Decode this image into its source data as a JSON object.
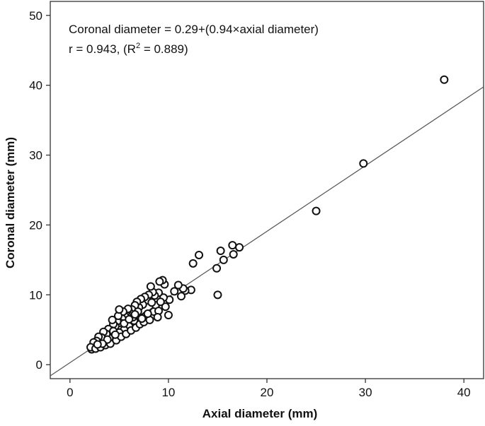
{
  "chart_data": {
    "type": "scatter",
    "title": "",
    "xlabel": "Axial diameter (mm)",
    "ylabel": "Coronal diameter (mm)",
    "xlim": [
      -2,
      42
    ],
    "ylim": [
      -2,
      52
    ],
    "x_ticks": [
      0,
      10,
      20,
      30,
      40
    ],
    "y_ticks": [
      0,
      10,
      20,
      30,
      40,
      50
    ],
    "grid": false,
    "legend": "none",
    "annotation": {
      "equation": "Coronal diameter = 0.29+(0.94×axial diameter)",
      "stats_prefix": "r = 0.943, (R",
      "stats_sup": "2",
      "stats_suffix": " = 0.889)"
    },
    "regression": {
      "intercept": 0.29,
      "slope": 0.94
    },
    "colors": {
      "marker_edge": "#111111",
      "marker_fill": "#ffffff",
      "line": "#555555",
      "frame": "#333333"
    },
    "points": [
      [
        38.0,
        40.8
      ],
      [
        29.8,
        28.8
      ],
      [
        25.0,
        22.0
      ],
      [
        17.2,
        16.8
      ],
      [
        16.5,
        17.1
      ],
      [
        16.6,
        15.8
      ],
      [
        15.6,
        15.0
      ],
      [
        15.3,
        16.3
      ],
      [
        14.9,
        13.8
      ],
      [
        15.0,
        10.0
      ],
      [
        13.1,
        15.7
      ],
      [
        12.5,
        14.5
      ],
      [
        12.3,
        10.7
      ],
      [
        11.7,
        10.6
      ],
      [
        11.3,
        9.8
      ],
      [
        11.5,
        10.9
      ],
      [
        11.0,
        11.4
      ],
      [
        10.6,
        10.5
      ],
      [
        10.1,
        9.3
      ],
      [
        10.0,
        7.1
      ],
      [
        9.7,
        8.3
      ],
      [
        9.5,
        9.6
      ],
      [
        9.6,
        11.5
      ],
      [
        9.4,
        12.1
      ],
      [
        9.1,
        11.9
      ],
      [
        9.0,
        10.3
      ],
      [
        8.7,
        8.5
      ],
      [
        8.6,
        9.9
      ],
      [
        8.4,
        10.4
      ],
      [
        8.2,
        11.2
      ],
      [
        8.5,
        7.6
      ],
      [
        9.0,
        7.7
      ],
      [
        8.9,
        6.8
      ],
      [
        8.0,
        10.0
      ],
      [
        7.8,
        9.2
      ],
      [
        7.6,
        9.7
      ],
      [
        7.7,
        7.0
      ],
      [
        7.4,
        8.6
      ],
      [
        7.2,
        9.4
      ],
      [
        7.0,
        8.2
      ],
      [
        6.9,
        7.1
      ],
      [
        6.8,
        9.0
      ],
      [
        6.6,
        8.5
      ],
      [
        6.5,
        6.3
      ],
      [
        6.3,
        7.9
      ],
      [
        6.1,
        7.4
      ],
      [
        6.0,
        5.5
      ],
      [
        5.8,
        7.7
      ],
      [
        5.6,
        6.9
      ],
      [
        5.5,
        5.0
      ],
      [
        5.3,
        6.6
      ],
      [
        5.1,
        6.0
      ],
      [
        5.0,
        4.6
      ],
      [
        4.8,
        6.2
      ],
      [
        4.6,
        5.5
      ],
      [
        4.5,
        4.1
      ],
      [
        4.4,
        5.8
      ],
      [
        4.2,
        4.9
      ],
      [
        4.0,
        3.8
      ],
      [
        3.9,
        5.1
      ],
      [
        3.7,
        4.4
      ],
      [
        3.5,
        3.3
      ],
      [
        3.4,
        4.7
      ],
      [
        3.2,
        3.9
      ],
      [
        3.0,
        2.9
      ],
      [
        2.9,
        4.0
      ],
      [
        2.7,
        3.4
      ],
      [
        2.5,
        2.6
      ],
      [
        2.4,
        3.2
      ],
      [
        2.3,
        2.4
      ],
      [
        2.2,
        2.2
      ],
      [
        2.1,
        2.5
      ],
      [
        2.6,
        2.3
      ],
      [
        3.1,
        2.5
      ],
      [
        3.6,
        2.8
      ],
      [
        4.1,
        3.0
      ],
      [
        4.7,
        3.5
      ],
      [
        5.2,
        4.0
      ],
      [
        5.7,
        4.4
      ],
      [
        6.2,
        4.9
      ],
      [
        6.7,
        5.3
      ],
      [
        7.1,
        5.8
      ],
      [
        7.5,
        6.1
      ],
      [
        8.1,
        6.4
      ],
      [
        5.9,
        8.0
      ],
      [
        5.4,
        7.6
      ],
      [
        4.9,
        7.0
      ],
      [
        4.3,
        6.4
      ],
      [
        5.0,
        7.9
      ],
      [
        6.4,
        6.8
      ],
      [
        6.9,
        7.6
      ],
      [
        7.3,
        6.6
      ],
      [
        5.5,
        5.9
      ],
      [
        4.4,
        4.8
      ],
      [
        3.8,
        3.6
      ],
      [
        6.0,
        6.5
      ],
      [
        6.6,
        7.2
      ],
      [
        7.9,
        7.3
      ],
      [
        8.3,
        8.9
      ],
      [
        9.2,
        9.0
      ],
      [
        3.3,
        3.0
      ],
      [
        2.8,
        2.9
      ],
      [
        4.6,
        4.3
      ]
    ]
  }
}
